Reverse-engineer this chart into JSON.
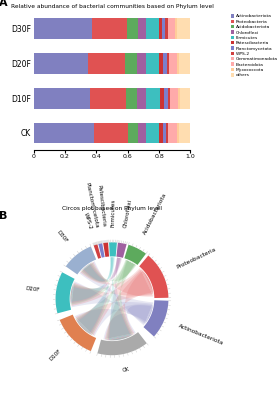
{
  "title_A": "Relative abundance of bacterial communities based on Phylum level",
  "title_B": "Circos plot based on Phylum level",
  "label_A": "A",
  "label_B": "B",
  "categories": [
    "CK",
    "D10F",
    "D20F",
    "D30F"
  ],
  "phyla": [
    "Actinobacteriota",
    "Proteobacteria",
    "Acidobacteriota",
    "Chloroflexi",
    "Firmicutes",
    "Patescibacteria",
    "Planctomycetota",
    "WPS-2",
    "Gemmatimonadota",
    "Bacteroidota",
    "Myxococcota",
    "others"
  ],
  "bar_colors": [
    "#8080c0",
    "#e05252",
    "#5daa5d",
    "#a060a0",
    "#3dbfbf",
    "#cc3333",
    "#7b7fcc",
    "#d04040",
    "#ffaaaa",
    "#ffaaaa",
    "#ffcc99",
    "#ffddb0"
  ],
  "legend_colors": [
    "#8080c0",
    "#e05252",
    "#5daa5d",
    "#a060a0",
    "#3dbfbf",
    "#cc3333",
    "#7b7fcc",
    "#d04040",
    "#ffaaaa",
    "#ffaaaa",
    "#ffcc99",
    "#ffddb0"
  ],
  "data": {
    "CK": [
      0.385,
      0.215,
      0.065,
      0.055,
      0.08,
      0.025,
      0.02,
      0.015,
      0.03,
      0.022,
      0.018,
      0.07
    ],
    "D10F": [
      0.36,
      0.23,
      0.07,
      0.055,
      0.092,
      0.026,
      0.021,
      0.016,
      0.028,
      0.02,
      0.016,
      0.066
    ],
    "D20F": [
      0.35,
      0.235,
      0.072,
      0.057,
      0.087,
      0.026,
      0.021,
      0.016,
      0.028,
      0.02,
      0.016,
      0.072
    ],
    "D30F": [
      0.375,
      0.22,
      0.068,
      0.052,
      0.082,
      0.024,
      0.019,
      0.014,
      0.026,
      0.019,
      0.014,
      0.087
    ]
  },
  "xlim": [
    0,
    1.0
  ],
  "xticks": [
    0,
    0.2,
    0.4,
    0.6,
    0.8,
    1.0
  ],
  "circos_segs": [
    {
      "label": "D30F",
      "t1": 112,
      "t2": 145,
      "color": "#9ab0d0",
      "side": "left"
    },
    {
      "label": "D20F",
      "t1": 152,
      "t2": 195,
      "color": "#3dbfbf",
      "side": "left"
    },
    {
      "label": "D10F",
      "t1": 202,
      "t2": 248,
      "color": "#e08050",
      "side": "left"
    },
    {
      "label": "CK",
      "t1": 255,
      "t2": 308,
      "color": "#aaaaaa",
      "side": "bottom"
    },
    {
      "label": "Actinobacteriota",
      "t1": 318,
      "t2": 358,
      "color": "#8080c0",
      "side": "right"
    },
    {
      "label": "Proteobacteria",
      "t1": 1,
      "t2": 50,
      "color": "#e05252",
      "side": "right"
    },
    {
      "label": "Acidobacteriota",
      "t1": 53,
      "t2": 73,
      "color": "#5daa5d",
      "side": "right"
    },
    {
      "label": "Chloroflexi",
      "t1": 75,
      "t2": 84,
      "color": "#a060a0",
      "side": "right"
    },
    {
      "label": "Firmicutes",
      "t1": 85,
      "t2": 93,
      "color": "#3dbfbf",
      "side": "right"
    },
    {
      "label": "Patescibacteria",
      "t1": 94,
      "t2": 99,
      "color": "#cc3333",
      "side": "right"
    },
    {
      "label": "Planctomycetota",
      "t1": 100,
      "t2": 104,
      "color": "#7b7fcc",
      "side": "right"
    },
    {
      "label": "WPS-2",
      "t1": 105,
      "t2": 109,
      "color": "#d04040",
      "side": "right"
    }
  ],
  "ribbon_data": [
    [
      115,
      142,
      320,
      355,
      "#8080c0",
      0.18
    ],
    [
      117,
      140,
      3,
      48,
      "#e05252",
      0.18
    ],
    [
      119,
      138,
      54,
      71,
      "#5daa5d",
      0.18
    ],
    [
      121,
      136,
      76,
      83,
      "#a060a0",
      0.18
    ],
    [
      123,
      134,
      86,
      92,
      "#3dbfbf",
      0.18
    ],
    [
      155,
      192,
      322,
      353,
      "#8080c0",
      0.18
    ],
    [
      157,
      190,
      5,
      46,
      "#e05252",
      0.18
    ],
    [
      159,
      188,
      55,
      70,
      "#5daa5d",
      0.18
    ],
    [
      161,
      186,
      77,
      83,
      "#a060a0",
      0.18
    ],
    [
      163,
      184,
      87,
      92,
      "#3dbfbf",
      0.18
    ],
    [
      205,
      245,
      324,
      351,
      "#8080c0",
      0.18
    ],
    [
      207,
      243,
      7,
      44,
      "#e05252",
      0.18
    ],
    [
      209,
      241,
      56,
      69,
      "#5daa5d",
      0.18
    ],
    [
      211,
      239,
      78,
      83,
      "#a060a0",
      0.18
    ],
    [
      213,
      237,
      88,
      92,
      "#3dbfbf",
      0.18
    ],
    [
      258,
      305,
      326,
      349,
      "#8080c0",
      0.18
    ],
    [
      260,
      303,
      9,
      42,
      "#e05252",
      0.18
    ],
    [
      262,
      301,
      57,
      68,
      "#5daa5d",
      0.18
    ],
    [
      264,
      299,
      79,
      83,
      "#a060a0",
      0.18
    ],
    [
      266,
      297,
      89,
      92,
      "#3dbfbf",
      0.18
    ]
  ]
}
